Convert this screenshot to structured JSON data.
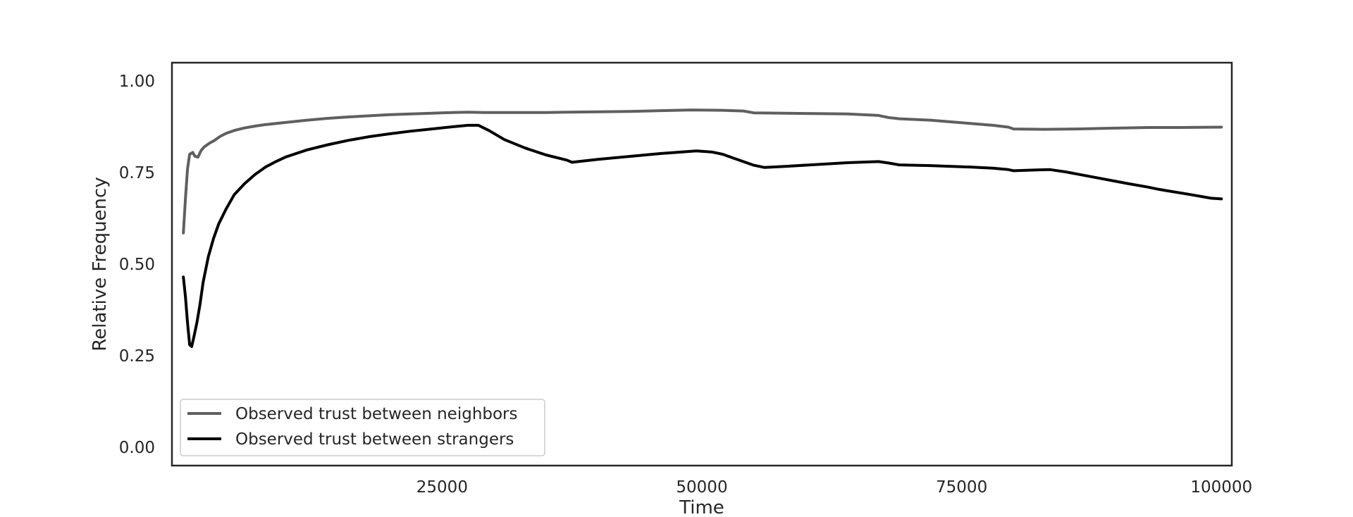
{
  "chart_data": {
    "type": "line",
    "title": "",
    "xlabel": "Time",
    "ylabel": "Relative Frequency",
    "xlim": [
      -1000,
      101000
    ],
    "ylim": [
      -0.05,
      1.05
    ],
    "x_ticks": [
      25000,
      50000,
      75000,
      100000
    ],
    "x_tick_labels": [
      "25000",
      "50000",
      "75000",
      "100000"
    ],
    "y_ticks": [
      0.0,
      0.25,
      0.5,
      0.75,
      1.0
    ],
    "y_tick_labels": [
      "0.00",
      "0.25",
      "0.50",
      "0.75",
      "1.00"
    ],
    "grid": false,
    "legend_position": "lower-left",
    "series": [
      {
        "name": "Observed trust between neighbors",
        "color": "#5f5f5f",
        "x": [
          100,
          300,
          500,
          700,
          1000,
          1200,
          1500,
          1800,
          2100,
          2600,
          3100,
          3600,
          4200,
          5000,
          6000,
          7000,
          8000,
          10000,
          12000,
          14000,
          16000,
          18000,
          20000,
          22000,
          24000,
          26000,
          27500,
          29000,
          31000,
          33000,
          35000,
          37000,
          40000,
          43000,
          46000,
          49000,
          52000,
          54000,
          55000,
          58000,
          61000,
          64000,
          67000,
          68000,
          69000,
          72000,
          75000,
          78000,
          79500,
          80000,
          83000,
          86000,
          89000,
          93000,
          96000,
          100000
        ],
        "y": [
          0.585,
          0.68,
          0.76,
          0.8,
          0.805,
          0.795,
          0.792,
          0.81,
          0.82,
          0.83,
          0.838,
          0.848,
          0.857,
          0.865,
          0.872,
          0.877,
          0.881,
          0.887,
          0.893,
          0.898,
          0.902,
          0.905,
          0.908,
          0.91,
          0.912,
          0.914,
          0.915,
          0.914,
          0.914,
          0.914,
          0.914,
          0.915,
          0.916,
          0.917,
          0.919,
          0.921,
          0.92,
          0.918,
          0.913,
          0.912,
          0.911,
          0.91,
          0.906,
          0.9,
          0.897,
          0.893,
          0.886,
          0.879,
          0.874,
          0.869,
          0.868,
          0.869,
          0.871,
          0.873,
          0.873,
          0.874
        ]
      },
      {
        "name": "Observed trust between strangers",
        "color": "#000000",
        "x": [
          100,
          300,
          500,
          700,
          900,
          1100,
          1400,
          1700,
          2000,
          2500,
          3000,
          3500,
          4200,
          5000,
          6000,
          7000,
          8000,
          9000,
          10000,
          12000,
          14000,
          16000,
          18000,
          20000,
          22000,
          24000,
          26000,
          27500,
          28500,
          29500,
          31000,
          33000,
          35000,
          37000,
          37500,
          40000,
          43000,
          46000,
          49000,
          49500,
          51000,
          52000,
          53000,
          55000,
          56000,
          58000,
          61000,
          64000,
          67000,
          68000,
          69000,
          72000,
          75000,
          76000,
          78000,
          79500,
          80000,
          82000,
          83500,
          85000,
          88000,
          91000,
          93000,
          94000,
          97000,
          99000,
          100000
        ],
        "y": [
          0.465,
          0.41,
          0.34,
          0.28,
          0.275,
          0.3,
          0.34,
          0.39,
          0.45,
          0.52,
          0.57,
          0.61,
          0.65,
          0.69,
          0.72,
          0.745,
          0.765,
          0.78,
          0.793,
          0.812,
          0.826,
          0.838,
          0.848,
          0.856,
          0.863,
          0.869,
          0.875,
          0.879,
          0.879,
          0.865,
          0.84,
          0.817,
          0.798,
          0.784,
          0.778,
          0.786,
          0.794,
          0.802,
          0.808,
          0.809,
          0.806,
          0.8,
          0.79,
          0.77,
          0.764,
          0.767,
          0.772,
          0.777,
          0.78,
          0.776,
          0.771,
          0.769,
          0.766,
          0.765,
          0.762,
          0.758,
          0.755,
          0.757,
          0.758,
          0.752,
          0.736,
          0.72,
          0.71,
          0.704,
          0.69,
          0.68,
          0.678
        ]
      }
    ]
  }
}
